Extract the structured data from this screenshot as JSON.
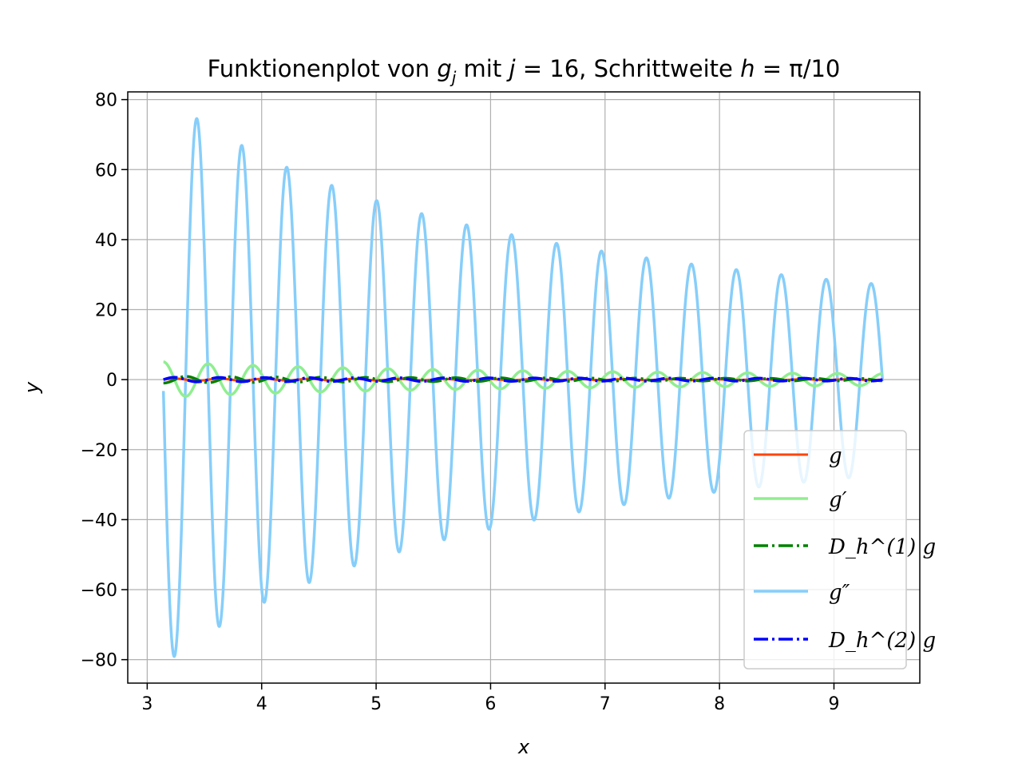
{
  "chart_data": {
    "type": "line",
    "title": {
      "prefix": "Funktionenplot von ",
      "func": "g",
      "func_sub": "j",
      "mid": " mit ",
      "var": "j",
      "eq1": " = 16, Schrittweite ",
      "hvar": "h",
      "eq2": " = π/10"
    },
    "xlabel": "x",
    "ylabel": "y",
    "xlim": [
      2.83,
      9.75
    ],
    "ylim": [
      -86.7,
      82.2
    ],
    "xticks": [
      3,
      4,
      5,
      6,
      7,
      8,
      9
    ],
    "xtick_labels": [
      "3",
      "4",
      "5",
      "6",
      "7",
      "8",
      "9"
    ],
    "yticks": [
      80,
      60,
      40,
      20,
      0,
      -20,
      -40,
      -60,
      -80
    ],
    "ytick_labels": [
      "80",
      "60",
      "40",
      "20",
      "0",
      "−20",
      "−40",
      "−60",
      "−80"
    ],
    "grid": true,
    "legend_position": "lower-right",
    "x_range": [
      3.1416,
      9.4248
    ],
    "series": [
      {
        "name": "g",
        "color": "#ff4500",
        "style": "solid"
      },
      {
        "name": "g′",
        "color": "#90ee90",
        "style": "solid"
      },
      {
        "name": "D_h^(1) g",
        "color": "#008000",
        "style": "dashdot"
      },
      {
        "name": "g″",
        "color": "#87cefa",
        "style": "solid"
      },
      {
        "name": "D_h^(2) g",
        "color": "#0000ff",
        "style": "dashdot"
      }
    ]
  }
}
